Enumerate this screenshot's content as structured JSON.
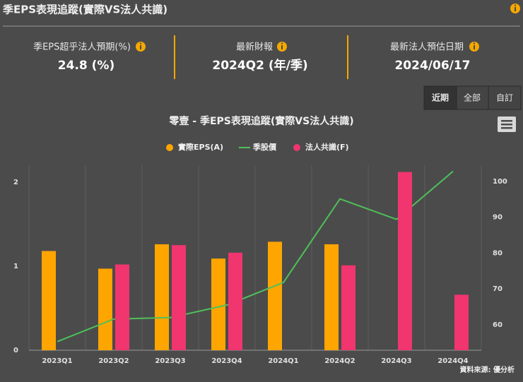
{
  "header": {
    "title": "季EPS表現追蹤(實際VS法人共識)"
  },
  "stats": [
    {
      "label": "季EPS超乎法人預期(%)",
      "value": "24.8 (%)"
    },
    {
      "label": "最新財報",
      "value": "2024Q2 (年/季)"
    },
    {
      "label": "最新法人預估日期",
      "value": "2024/06/17"
    }
  ],
  "range_buttons": [
    "近期",
    "全部",
    "自訂"
  ],
  "source": "資料來源: 優分析",
  "chart_data": {
    "type": "bar",
    "title": "零壹 - 季EPS表現追蹤(實際VS法人共識)",
    "categories": [
      "2023Q1",
      "2023Q2",
      "2023Q3",
      "2023Q4",
      "2024Q1",
      "2024Q2",
      "2024Q3",
      "2024Q4"
    ],
    "series": [
      {
        "name": "實際EPS(A)",
        "type": "bar",
        "color": "#ffa500",
        "values": [
          1.18,
          0.97,
          1.26,
          1.09,
          1.29,
          1.26,
          null,
          null
        ]
      },
      {
        "name": "季股價",
        "type": "line",
        "axis": "y2",
        "color": "#4fc05a",
        "values": [
          55.3,
          61.6,
          62.0,
          65.5,
          71.8,
          95.1,
          89.4,
          102.8
        ]
      },
      {
        "name": "法人共識(F)",
        "type": "bar",
        "color": "#f0356f",
        "values": [
          null,
          1.02,
          1.25,
          1.16,
          null,
          1.01,
          2.12,
          0.66
        ]
      }
    ],
    "ylim": [
      0,
      2.2
    ],
    "yticks": [
      0,
      1,
      2
    ],
    "y2lim": [
      52.9,
      104.5
    ],
    "y2ticks": [
      60,
      70,
      80,
      90,
      100
    ],
    "legend": "top"
  }
}
